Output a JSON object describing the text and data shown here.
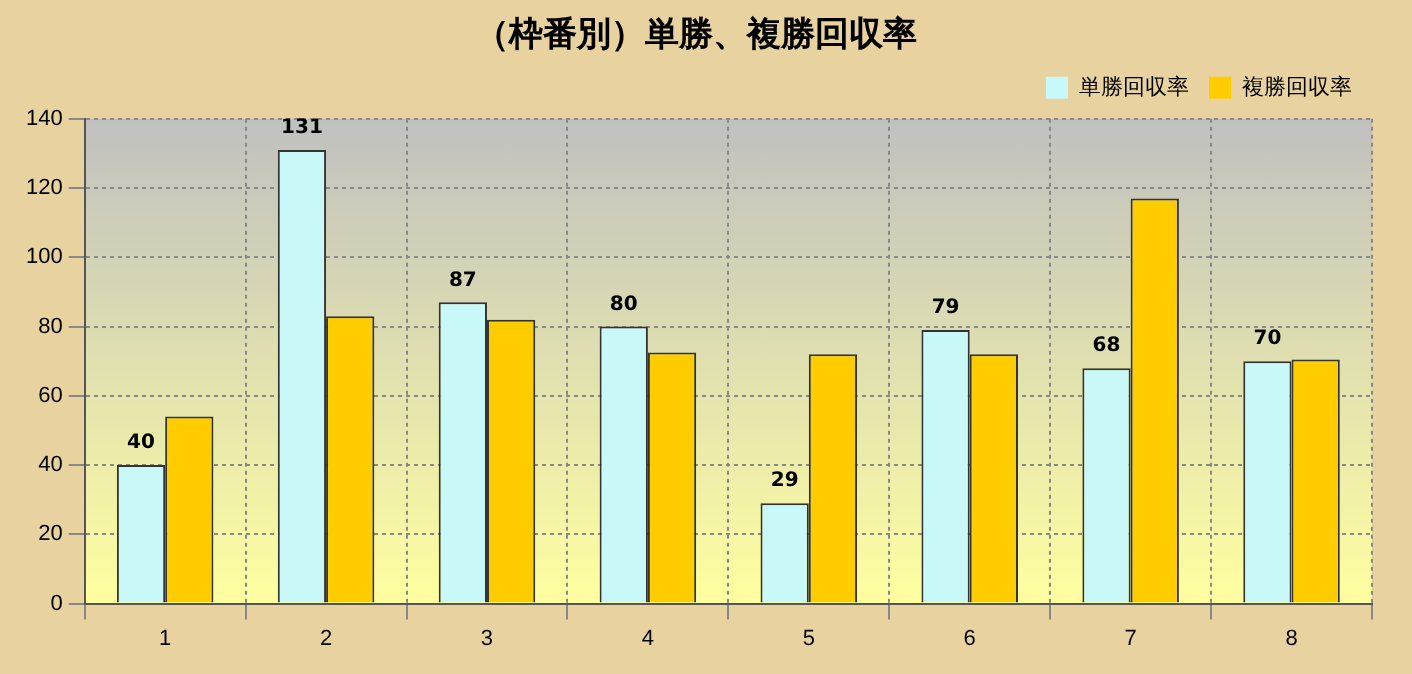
{
  "chart_data": {
    "type": "bar",
    "title": "（枠番別）単勝、複勝回収率",
    "categories": [
      "1",
      "2",
      "3",
      "4",
      "5",
      "6",
      "7",
      "8"
    ],
    "series": [
      {
        "name": "単勝回収率",
        "color": "#c8f8f8",
        "values": [
          40,
          131,
          87,
          80,
          29,
          79,
          68,
          70
        ],
        "value_labels": [
          "40",
          "131",
          "87",
          "80",
          "29",
          "79",
          "68",
          "70"
        ]
      },
      {
        "name": "複勝回収率",
        "color": "#ffcc00",
        "values": [
          54,
          83,
          82,
          72.5,
          72,
          72,
          117,
          70.5
        ]
      }
    ],
    "ylim": [
      0,
      140
    ],
    "yticks": [
      0,
      20,
      40,
      60,
      80,
      100,
      120,
      140
    ],
    "grid": true,
    "legend": "top right"
  }
}
